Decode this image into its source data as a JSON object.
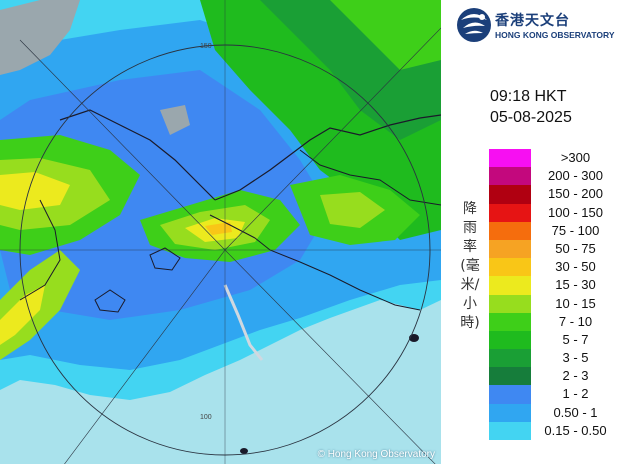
{
  "map": {
    "copyright": "© Hong Kong Observatory",
    "ring_labels": [
      "150",
      "100"
    ]
  },
  "header": {
    "logo_cn": "香港天文台",
    "logo_en": "HONG KONG OBSERVATORY"
  },
  "timestamp": {
    "time": "09:18 HKT",
    "date": "05-08-2025"
  },
  "legend": {
    "title": "降雨率(毫米/小時)",
    "entries": [
      {
        "label": ">300",
        "color": "#f70ff2"
      },
      {
        "label": "200 - 300",
        "color": "#c3087d"
      },
      {
        "label": "150 - 200",
        "color": "#b00011"
      },
      {
        "label": "100 - 150",
        "color": "#e61414"
      },
      {
        "label": "75 - 100",
        "color": "#f56d0d"
      },
      {
        "label": "50 - 75",
        "color": "#f6a323"
      },
      {
        "label": "30 - 50",
        "color": "#f9c617"
      },
      {
        "label": "15 - 30",
        "color": "#ecea1e"
      },
      {
        "label": "10 - 15",
        "color": "#97dd1e"
      },
      {
        "label": "7 - 10",
        "color": "#3ecf19"
      },
      {
        "label": "5 - 7",
        "color": "#1fbb1e"
      },
      {
        "label": "3 - 5",
        "color": "#1a9f35"
      },
      {
        "label": "2 - 3",
        "color": "#167d3b"
      },
      {
        "label": "1 - 2",
        "color": "#3f88f2"
      },
      {
        "label": "0.50 - 1",
        "color": "#30a6f1"
      },
      {
        "label": "0.15 - 0.50",
        "color": "#43d4f2"
      }
    ]
  }
}
